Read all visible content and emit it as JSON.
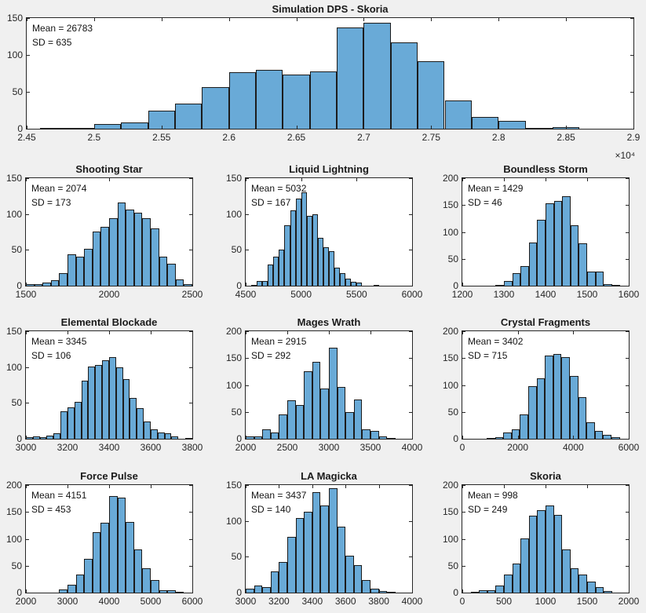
{
  "colors": {
    "figure_background": "#f0f0f0",
    "axes_background": "#ffffff",
    "bar_fill": "#69aad7",
    "bar_edge": "#1c1c1c",
    "axis_color": "#262626"
  },
  "chart_data": [
    {
      "type": "bar",
      "title": "Simulation DPS - Skoria",
      "mean": 26783,
      "sd": 635,
      "mean_label": "Mean = 26783",
      "sd_label": "SD = 635",
      "x_exponent_label": "×10⁴",
      "xlim": [
        24500,
        29000
      ],
      "ylim": [
        0,
        150
      ],
      "xtick_values": [
        24500,
        25000,
        25500,
        26000,
        26500,
        27000,
        27500,
        28000,
        28500,
        29000
      ],
      "xtick_labels": [
        "2.45",
        "2.5",
        "2.55",
        "2.6",
        "2.65",
        "2.7",
        "2.75",
        "2.8",
        "2.85",
        "2.9"
      ],
      "yticks": [
        0,
        50,
        100,
        150
      ],
      "bin_start": 24600,
      "bin_width": 200,
      "values": [
        1,
        1,
        6,
        9,
        25,
        34,
        56,
        77,
        80,
        73,
        78,
        137,
        144,
        117,
        92,
        38,
        16,
        11,
        1,
        2
      ]
    },
    {
      "type": "bar",
      "title": "Shooting Star",
      "mean": 2074,
      "sd": 173,
      "mean_label": "Mean = 2074",
      "sd_label": "SD = 173",
      "xlim": [
        1500,
        2500
      ],
      "ylim": [
        0,
        150
      ],
      "xtick_values": [
        1500,
        2000,
        2500
      ],
      "xtick_labels": [
        "1500",
        "2000",
        "2500"
      ],
      "yticks": [
        0,
        50,
        100,
        150
      ],
      "bin_start": 1500,
      "bin_width": 50,
      "values": [
        2,
        2,
        4,
        8,
        17,
        44,
        40,
        51,
        76,
        82,
        94,
        116,
        106,
        102,
        94,
        80,
        40,
        31,
        9,
        2
      ]
    },
    {
      "type": "bar",
      "title": "Liquid Lightning",
      "mean": 5032,
      "sd": 167,
      "mean_label": "Mean = 5032",
      "sd_label": "SD = 167",
      "xlim": [
        4500,
        6000
      ],
      "ylim": [
        0,
        150
      ],
      "xtick_values": [
        4500,
        5000,
        5500,
        6000
      ],
      "xtick_labels": [
        "4500",
        "5000",
        "5500",
        "6000"
      ],
      "yticks": [
        0,
        50,
        100,
        150
      ],
      "bin_start": 4550,
      "bin_width": 50,
      "values": [
        1,
        7,
        7,
        30,
        41,
        50,
        84,
        105,
        122,
        130,
        98,
        100,
        67,
        54,
        48,
        25,
        18,
        10,
        5,
        4,
        0,
        0,
        1
      ]
    },
    {
      "type": "bar",
      "title": "Boundless Storm",
      "mean": 1429,
      "sd": 46,
      "mean_label": "Mean = 1429",
      "sd_label": "SD = 46",
      "xlim": [
        1200,
        1600
      ],
      "ylim": [
        0,
        200
      ],
      "xtick_values": [
        1200,
        1300,
        1400,
        1500,
        1600
      ],
      "xtick_labels": [
        "1200",
        "1300",
        "1400",
        "1500",
        "1600"
      ],
      "yticks": [
        0,
        50,
        100,
        150,
        200
      ],
      "bin_start": 1280,
      "bin_width": 20,
      "values": [
        1,
        9,
        23,
        37,
        81,
        123,
        154,
        158,
        167,
        113,
        79,
        27,
        27,
        3,
        2
      ]
    },
    {
      "type": "bar",
      "title": "Elemental Blockade",
      "mean": 3345,
      "sd": 106,
      "mean_label": "Mean = 3345",
      "sd_label": "SD = 106",
      "xlim": [
        3000,
        3800
      ],
      "ylim": [
        0,
        150
      ],
      "xtick_values": [
        3000,
        3200,
        3400,
        3600,
        3800
      ],
      "xtick_labels": [
        "3000",
        "3200",
        "3400",
        "3600",
        "3800"
      ],
      "yticks": [
        0,
        50,
        100,
        150
      ],
      "bin_start": 3000,
      "bin_width": 33.33,
      "values": [
        2,
        3,
        2,
        4,
        8,
        38,
        44,
        51,
        81,
        101,
        103,
        110,
        114,
        100,
        83,
        57,
        43,
        24,
        13,
        9,
        8,
        3,
        0,
        1
      ]
    },
    {
      "type": "bar",
      "title": "Mages Wrath",
      "mean": 2915,
      "sd": 292,
      "mean_label": "Mean = 2915",
      "sd_label": "SD = 292",
      "xlim": [
        2000,
        4000
      ],
      "ylim": [
        0,
        200
      ],
      "xtick_values": [
        2000,
        2500,
        3000,
        3500,
        4000
      ],
      "xtick_labels": [
        "2000",
        "2500",
        "3000",
        "3500",
        "4000"
      ],
      "yticks": [
        0,
        50,
        100,
        150,
        200
      ],
      "bin_start": 2000,
      "bin_width": 100,
      "values": [
        4,
        5,
        17,
        12,
        46,
        72,
        63,
        126,
        143,
        94,
        170,
        97,
        50,
        73,
        17,
        14,
        4,
        2
      ]
    },
    {
      "type": "bar",
      "title": "Crystal Fragments",
      "mean": 3402,
      "sd": 715,
      "mean_label": "Mean = 3402",
      "sd_label": "SD = 715",
      "xlim": [
        0,
        6000
      ],
      "ylim": [
        0,
        200
      ],
      "xtick_values": [
        0,
        2000,
        4000,
        6000
      ],
      "xtick_labels": [
        "0",
        "2000",
        "4000",
        "6000"
      ],
      "yticks": [
        0,
        50,
        100,
        150,
        200
      ],
      "bin_start": 880,
      "bin_width": 300,
      "values": [
        1,
        3,
        11,
        17,
        46,
        98,
        112,
        155,
        157,
        152,
        117,
        78,
        31,
        15,
        7,
        3
      ]
    },
    {
      "type": "bar",
      "title": "Force Pulse",
      "mean": 4151,
      "sd": 453,
      "mean_label": "Mean = 4151",
      "sd_label": "SD = 453",
      "xlim": [
        2000,
        6000
      ],
      "ylim": [
        0,
        200
      ],
      "xtick_values": [
        2000,
        3000,
        4000,
        5000,
        6000
      ],
      "xtick_labels": [
        "2000",
        "3000",
        "4000",
        "5000",
        "6000"
      ],
      "yticks": [
        0,
        50,
        100,
        150,
        200
      ],
      "bin_start": 2800,
      "bin_width": 200,
      "values": [
        6,
        14,
        34,
        63,
        113,
        130,
        180,
        176,
        131,
        81,
        46,
        23,
        5,
        5,
        2
      ]
    },
    {
      "type": "bar",
      "title": "LA Magicka",
      "mean": 3437,
      "sd": 140,
      "mean_label": "Mean = 3437",
      "sd_label": "SD = 140",
      "xlim": [
        3000,
        4000
      ],
      "ylim": [
        0,
        150
      ],
      "xtick_values": [
        3000,
        3200,
        3400,
        3600,
        3800,
        4000
      ],
      "xtick_labels": [
        "3000",
        "3200",
        "3400",
        "3600",
        "3800",
        "4000"
      ],
      "yticks": [
        0,
        50,
        100,
        150
      ],
      "bin_start": 3000,
      "bin_width": 50,
      "values": [
        5,
        10,
        8,
        30,
        43,
        78,
        104,
        113,
        140,
        122,
        146,
        92,
        52,
        38,
        18,
        6,
        2,
        1
      ]
    },
    {
      "type": "bar",
      "title": "Skoria",
      "mean": 998,
      "sd": 249,
      "mean_label": "Mean = 998",
      "sd_label": "SD = 249",
      "xlim": [
        0,
        2000
      ],
      "ylim": [
        0,
        200
      ],
      "xtick_values": [
        0,
        500,
        1000,
        1500,
        2000
      ],
      "xtick_labels": [
        "0",
        "500",
        "1000",
        "1500",
        "2000"
      ],
      "yticks": [
        0,
        50,
        100,
        150,
        200
      ],
      "bin_start": 100,
      "bin_width": 100,
      "values": [
        1,
        4,
        4,
        13,
        34,
        54,
        101,
        143,
        153,
        162,
        145,
        81,
        46,
        33,
        20,
        10,
        3
      ]
    }
  ]
}
